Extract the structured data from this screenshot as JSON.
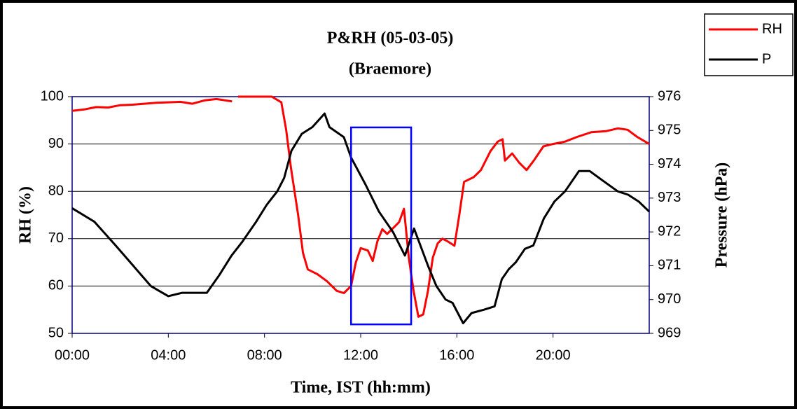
{
  "chart_data": {
    "type": "line",
    "title": "P&RH (05-03-05)",
    "subtitle": "(Braemore)",
    "x_label": "Time, IST (hh:mm)",
    "y_label": "RH (%)",
    "y2_label": "Pressure (hPa)",
    "xlim": [
      0,
      24
    ],
    "xticks": [
      {
        "value": 0,
        "label": "00:00"
      },
      {
        "value": 4,
        "label": "04:00"
      },
      {
        "value": 8,
        "label": "08:00"
      },
      {
        "value": 12,
        "label": "12:00"
      },
      {
        "value": 16,
        "label": "16:00"
      },
      {
        "value": 20,
        "label": "20:00"
      }
    ],
    "ylim": [
      50,
      100
    ],
    "yticks": [
      50,
      60,
      70,
      80,
      90,
      100
    ],
    "y2lim": [
      969,
      976
    ],
    "y2ticks": [
      969,
      970,
      971,
      972,
      973,
      974,
      975,
      976
    ],
    "grid": true,
    "legend": "top-right",
    "series": [
      {
        "name": "RH",
        "color": "#ff0000",
        "axis": "y",
        "x": [
          0,
          0.5,
          1,
          1.5,
          2,
          2.5,
          3,
          3.5,
          4,
          4.5,
          5,
          5.5,
          6,
          6.65,
          6.8,
          6.9,
          7.5,
          8.3,
          8.7,
          8.9,
          9.1,
          9.4,
          9.6,
          9.8,
          10.2,
          10.6,
          11,
          11.3,
          11.6,
          11.8,
          12,
          12.3,
          12.5,
          12.7,
          12.9,
          13.1,
          13.4,
          13.6,
          13.8,
          14,
          14.2,
          14.4,
          14.6,
          14.8,
          15,
          15.2,
          15.4,
          15.6,
          15.9,
          16.1,
          16.3,
          16.7,
          17,
          17.2,
          17.4,
          17.7,
          17.9,
          18,
          18.3,
          18.6,
          18.9,
          19.2,
          19.6,
          20,
          20.5,
          21,
          21.6,
          22.2,
          22.7,
          23.1,
          23.5,
          24
        ],
        "values": [
          97,
          97.3,
          97.8,
          97.7,
          98.2,
          98.3,
          98.5,
          98.7,
          98.8,
          98.9,
          98.5,
          99.2,
          99.5,
          99,
          null,
          100,
          100,
          100,
          98.8,
          93,
          85,
          75,
          67,
          63.5,
          62.5,
          61,
          59,
          58.5,
          60,
          65,
          68,
          67.5,
          65.3,
          69.5,
          72,
          71,
          72.5,
          73.5,
          76.3,
          66,
          59,
          53.5,
          54,
          59,
          66,
          69,
          70,
          69.5,
          68.5,
          75,
          82,
          83,
          84.5,
          86.5,
          88.5,
          90.5,
          91,
          86.5,
          88,
          86,
          84.5,
          86.5,
          89.5,
          90,
          90.5,
          91.5,
          92.5,
          92.7,
          93.3,
          93,
          91.5,
          90
        ]
      },
      {
        "name": "P",
        "color": "#000000",
        "axis": "y2",
        "x": [
          0,
          0.93,
          1.81,
          2.54,
          3.27,
          4,
          4.58,
          5.6,
          6.1,
          6.63,
          7.07,
          7.65,
          8.09,
          8.53,
          8.82,
          9.12,
          9.55,
          9.99,
          10.5,
          10.7,
          11.3,
          11.6,
          11.9,
          12.2,
          12.76,
          13.34,
          13.84,
          14.22,
          14.8,
          15.15,
          15.53,
          15.82,
          16.26,
          16.61,
          17.13,
          17.57,
          17.87,
          18.16,
          18.45,
          18.83,
          19.18,
          19.62,
          20.06,
          20.5,
          21.08,
          21.52,
          22.1,
          22.69,
          23.12,
          23.56,
          24
        ],
        "values": [
          972.7,
          972.3,
          971.6,
          971,
          970.4,
          970.1,
          970.2,
          970.2,
          970.7,
          971.3,
          971.7,
          972.3,
          972.8,
          973.2,
          973.6,
          974.4,
          974.9,
          975.1,
          975.5,
          975.1,
          974.8,
          974.2,
          973.8,
          973.4,
          972.6,
          972,
          971.3,
          972.1,
          971,
          970.4,
          970,
          969.9,
          969.3,
          969.6,
          969.7,
          969.8,
          970.6,
          970.9,
          971.1,
          971.5,
          971.6,
          972.4,
          972.9,
          973.2,
          973.8,
          973.8,
          973.5,
          973.2,
          973.1,
          972.9,
          972.6
        ]
      }
    ],
    "highlight_box": {
      "color": "#0000ff",
      "x": [
        11.6,
        14.1
      ],
      "y": [
        51.9,
        93.5
      ]
    }
  }
}
